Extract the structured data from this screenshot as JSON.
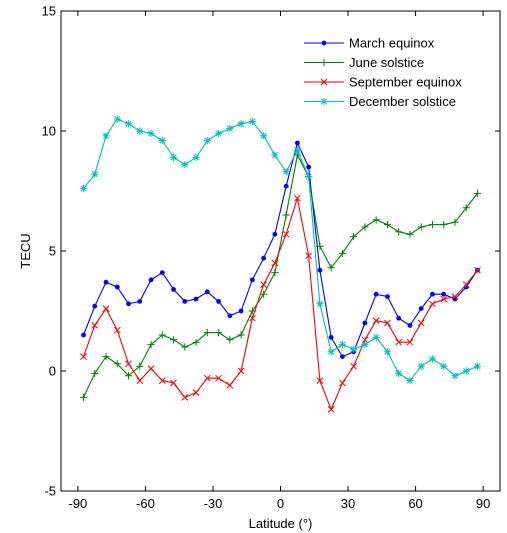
{
  "chart_data": {
    "type": "line",
    "title": "",
    "xlabel": "Latitude (°)",
    "ylabel": "TECU",
    "xlim": [
      -97.5,
      97.5
    ],
    "ylim": [
      -5,
      15
    ],
    "xticks": [
      -90,
      -60,
      -30,
      0,
      30,
      60,
      90
    ],
    "yticks": [
      -5,
      0,
      5,
      10,
      15
    ],
    "grid": false,
    "legend_position": "top-right",
    "x": [
      -87.5,
      -82.5,
      -77.5,
      -72.5,
      -67.5,
      -62.5,
      -57.5,
      -52.5,
      -47.5,
      -42.5,
      -37.5,
      -32.5,
      -27.5,
      -22.5,
      -17.5,
      -12.5,
      -7.5,
      -2.5,
      2.5,
      7.5,
      12.5,
      17.5,
      22.5,
      27.5,
      32.5,
      37.5,
      42.5,
      47.5,
      52.5,
      57.5,
      62.5,
      67.5,
      72.5,
      77.5,
      82.5,
      87.5
    ],
    "series": [
      {
        "name": "March equinox",
        "color": "#0000ff",
        "marker": "dot",
        "values": [
          1.5,
          2.7,
          3.7,
          3.5,
          2.8,
          2.9,
          3.8,
          4.1,
          3.4,
          2.9,
          3.0,
          3.3,
          2.9,
          2.3,
          2.5,
          3.8,
          4.7,
          5.7,
          7.7,
          9.5,
          8.5,
          4.2,
          1.4,
          0.6,
          0.8,
          2.0,
          3.2,
          3.1,
          2.2,
          1.9,
          2.6,
          3.2,
          3.2,
          3.0,
          3.5,
          4.2
        ]
      },
      {
        "name": "June solstice",
        "color": "#008000",
        "marker": "plus",
        "values": [
          -1.1,
          -0.1,
          0.6,
          0.3,
          -0.2,
          0.2,
          1.1,
          1.5,
          1.3,
          1.0,
          1.2,
          1.6,
          1.6,
          1.3,
          1.5,
          2.5,
          3.2,
          4.1,
          6.5,
          9.0,
          8.1,
          5.2,
          4.3,
          4.9,
          5.6,
          6.0,
          6.3,
          6.1,
          5.8,
          5.7,
          6.0,
          6.1,
          6.1,
          6.2,
          6.8,
          7.4
        ]
      },
      {
        "name": "September equinox",
        "color": "#ff0000",
        "marker": "x",
        "values": [
          0.6,
          1.9,
          2.6,
          1.7,
          0.3,
          -0.4,
          0.1,
          -0.4,
          -0.5,
          -1.1,
          -0.9,
          -0.3,
          -0.3,
          -0.6,
          0.0,
          2.2,
          3.6,
          4.5,
          5.7,
          7.2,
          4.8,
          -0.4,
          -1.6,
          -0.5,
          0.2,
          1.3,
          2.1,
          2.0,
          1.2,
          1.2,
          2.0,
          2.8,
          3.0,
          3.1,
          3.6,
          4.2
        ]
      },
      {
        "name": "December solstice",
        "color": "#00bfbf",
        "marker": "star",
        "values": [
          7.6,
          8.2,
          9.8,
          10.5,
          10.3,
          10.0,
          9.9,
          9.6,
          8.9,
          8.6,
          8.9,
          9.6,
          9.9,
          10.1,
          10.3,
          10.4,
          9.8,
          9.0,
          8.3,
          9.2,
          8.1,
          2.8,
          0.8,
          1.1,
          0.9,
          1.1,
          1.4,
          0.8,
          -0.1,
          -0.4,
          0.2,
          0.5,
          0.2,
          -0.2,
          0.0,
          0.2
        ]
      }
    ]
  }
}
